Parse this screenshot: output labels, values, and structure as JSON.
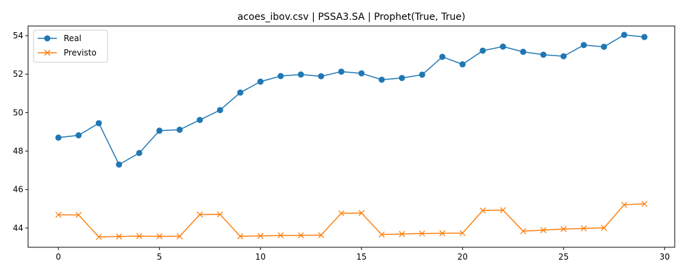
{
  "chart_data": {
    "type": "line",
    "title": "acoes_ibov.csv | PSSA3.SA | Prophet(True, True)",
    "xlabel": "",
    "ylabel": "",
    "xlim": [
      -1.5,
      30.5
    ],
    "ylim": [
      43.0,
      54.5
    ],
    "x_ticks": [
      0,
      5,
      10,
      15,
      20,
      25,
      30
    ],
    "y_ticks": [
      44,
      46,
      48,
      50,
      52,
      54
    ],
    "grid": false,
    "legend_position": "top-left",
    "x": [
      0,
      1,
      2,
      3,
      4,
      5,
      6,
      7,
      8,
      9,
      10,
      11,
      12,
      13,
      14,
      15,
      16,
      17,
      18,
      19,
      20,
      21,
      22,
      23,
      24,
      25,
      26,
      27,
      28,
      29
    ],
    "series": [
      {
        "name": "Real",
        "color": "#1f77b4",
        "marker": "circle",
        "values": [
          48.7,
          48.82,
          49.45,
          47.3,
          47.9,
          49.06,
          49.11,
          49.62,
          50.13,
          51.04,
          51.61,
          51.9,
          51.98,
          51.89,
          52.13,
          52.04,
          51.71,
          51.8,
          51.97,
          52.9,
          52.51,
          53.22,
          53.43,
          53.16,
          53.01,
          52.93,
          53.51,
          53.42,
          54.04,
          53.93
        ]
      },
      {
        "name": "Previsto",
        "color": "#ff7f0e",
        "marker": "x",
        "values": [
          44.69,
          44.68,
          43.54,
          43.56,
          43.58,
          43.57,
          43.57,
          44.7,
          44.71,
          43.57,
          43.59,
          43.62,
          43.62,
          43.63,
          44.77,
          44.78,
          43.66,
          43.69,
          43.72,
          43.73,
          43.74,
          44.91,
          44.93,
          43.84,
          43.89,
          43.95,
          43.98,
          44.01,
          45.21,
          45.26
        ]
      }
    ]
  }
}
